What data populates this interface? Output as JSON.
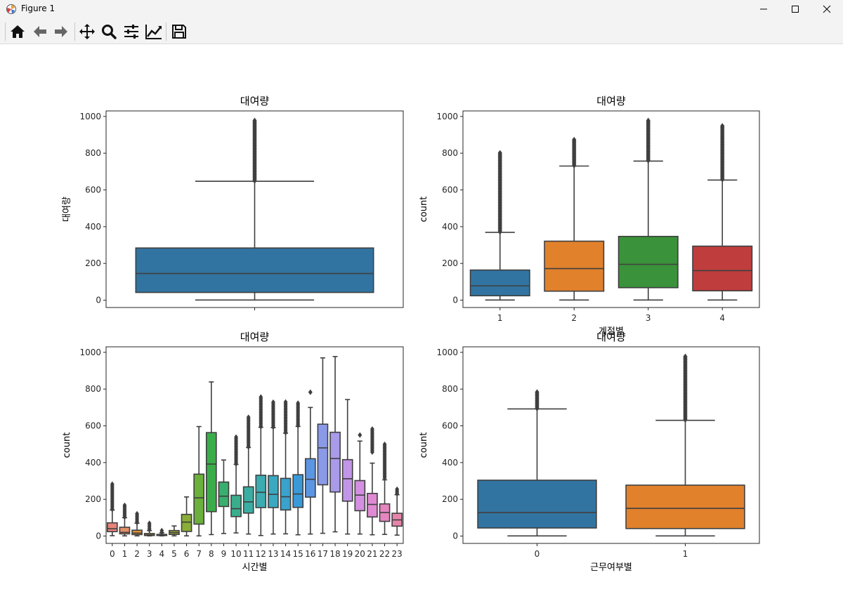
{
  "window": {
    "title": "Figure 1"
  },
  "toolbar": {
    "items": [
      {
        "name": "home-icon"
      },
      {
        "name": "back-icon"
      },
      {
        "name": "forward-icon"
      },
      {
        "name": "pan-icon"
      },
      {
        "name": "zoom-icon"
      },
      {
        "name": "subplots-icon"
      },
      {
        "name": "axes-edit-icon"
      },
      {
        "name": "save-icon"
      }
    ]
  },
  "chart_data": [
    {
      "type": "box",
      "title": "대여량",
      "xlabel": "",
      "ylabel": "대여량",
      "ylim": [
        -40,
        1030
      ],
      "yticks": [
        0,
        200,
        400,
        600,
        800,
        1000
      ],
      "categories": [
        ""
      ],
      "boxes": [
        {
          "q1": 42,
          "median": 145,
          "q3": 284,
          "whisker_low": 1,
          "whisker_high": 647,
          "outlier_min": 650,
          "outlier_max": 977,
          "color": "#3274a1"
        }
      ]
    },
    {
      "type": "box",
      "title": "대여량",
      "xlabel": "계절별",
      "ylabel": "count",
      "ylim": [
        -40,
        1030
      ],
      "yticks": [
        0,
        200,
        400,
        600,
        800,
        1000
      ],
      "categories": [
        "1",
        "2",
        "3",
        "4"
      ],
      "boxes": [
        {
          "q1": 24,
          "median": 78,
          "q3": 164,
          "whisker_low": 1,
          "whisker_high": 369,
          "outlier_min": 372,
          "outlier_max": 801,
          "color": "#3274a1"
        },
        {
          "q1": 49,
          "median": 172,
          "q3": 321,
          "whisker_low": 1,
          "whisker_high": 730,
          "outlier_min": 733,
          "outlier_max": 873,
          "color": "#e1812c"
        },
        {
          "q1": 68,
          "median": 195,
          "q3": 347,
          "whisker_low": 1,
          "whisker_high": 757,
          "outlier_min": 760,
          "outlier_max": 977,
          "color": "#3a923a"
        },
        {
          "q1": 51,
          "median": 161,
          "q3": 294,
          "whisker_low": 1,
          "whisker_high": 654,
          "outlier_min": 657,
          "outlier_max": 948,
          "color": "#c03d3e"
        }
      ]
    },
    {
      "type": "box",
      "title": "대여량",
      "xlabel": "시간별",
      "ylabel": "count",
      "ylim": [
        -40,
        1030
      ],
      "yticks": [
        0,
        200,
        400,
        600,
        800,
        1000
      ],
      "categories": [
        "0",
        "1",
        "2",
        "3",
        "4",
        "5",
        "6",
        "7",
        "8",
        "9",
        "10",
        "11",
        "12",
        "13",
        "14",
        "15",
        "16",
        "17",
        "18",
        "19",
        "20",
        "21",
        "22",
        "23"
      ],
      "boxes": [
        {
          "q1": 24,
          "median": 40,
          "q3": 72,
          "whisker_low": 2,
          "whisker_high": 142,
          "outlier_min": 145,
          "outlier_max": 283,
          "color": "#e7837a"
        },
        {
          "q1": 12,
          "median": 20,
          "q3": 48,
          "whisker_low": 1,
          "whisker_high": 100,
          "outlier_min": 103,
          "outlier_max": 168,
          "color": "#e38f6a"
        },
        {
          "q1": 8,
          "median": 16,
          "q3": 32,
          "whisker_low": 1,
          "whisker_high": 70,
          "outlier_min": 73,
          "outlier_max": 122,
          "color": "#d9913a"
        },
        {
          "q1": 3,
          "median": 6,
          "q3": 14,
          "whisker_low": 1,
          "whisker_high": 30,
          "outlier_min": 33,
          "outlier_max": 70,
          "color": "#c1983a"
        },
        {
          "q1": 3,
          "median": 6,
          "q3": 9,
          "whisker_low": 1,
          "whisker_high": 17,
          "outlier_min": 20,
          "outlier_max": 30,
          "color": "#b0a03a"
        },
        {
          "q1": 9,
          "median": 19,
          "q3": 30,
          "whisker_low": 1,
          "whisker_high": 55,
          "outlier_min": null,
          "outlier_max": null,
          "color": "#a0a83a"
        },
        {
          "q1": 25,
          "median": 76,
          "q3": 118,
          "whisker_low": 1,
          "whisker_high": 213,
          "outlier_min": null,
          "outlier_max": null,
          "color": "#8aad3a"
        },
        {
          "q1": 65,
          "median": 208,
          "q3": 337,
          "whisker_low": 1,
          "whisker_high": 596,
          "outlier_min": null,
          "outlier_max": null,
          "color": "#6bb03a"
        },
        {
          "q1": 133,
          "median": 392,
          "q3": 563,
          "whisker_low": 8,
          "whisker_high": 839,
          "outlier_min": null,
          "outlier_max": null,
          "color": "#3aad4a"
        },
        {
          "q1": 161,
          "median": 217,
          "q3": 294,
          "whisker_low": 14,
          "whisker_high": 414,
          "outlier_min": null,
          "outlier_max": null,
          "color": "#3aae6e"
        },
        {
          "q1": 106,
          "median": 149,
          "q3": 222,
          "whisker_low": 17,
          "whisker_high": 390,
          "outlier_min": 393,
          "outlier_max": 539,
          "color": "#3aae8c"
        },
        {
          "q1": 125,
          "median": 186,
          "q3": 268,
          "whisker_low": 11,
          "whisker_high": 482,
          "outlier_min": 485,
          "outlier_max": 647,
          "color": "#3aaea2"
        },
        {
          "q1": 155,
          "median": 238,
          "q3": 331,
          "whisker_low": 3,
          "whisker_high": 592,
          "outlier_min": 595,
          "outlier_max": 757,
          "color": "#3aacb2"
        },
        {
          "q1": 155,
          "median": 227,
          "q3": 329,
          "whisker_low": 11,
          "whisker_high": 590,
          "outlier_min": 593,
          "outlier_max": 729,
          "color": "#3aa8c0"
        },
        {
          "q1": 142,
          "median": 214,
          "q3": 314,
          "whisker_low": 12,
          "whisker_high": 560,
          "outlier_min": 563,
          "outlier_max": 730,
          "color": "#3aa2cc"
        },
        {
          "q1": 156,
          "median": 229,
          "q3": 334,
          "whisker_low": 7,
          "whisker_high": 597,
          "outlier_min": 600,
          "outlier_max": 724,
          "color": "#3a9ad8"
        },
        {
          "q1": 212,
          "median": 309,
          "q3": 421,
          "whisker_low": 11,
          "whisker_high": 700,
          "outlier_min": 783,
          "outlier_max": 783,
          "color": "#5a96e4"
        },
        {
          "q1": 279,
          "median": 480,
          "q3": 609,
          "whisker_low": 15,
          "whisker_high": 970,
          "outlier_min": null,
          "outlier_max": null,
          "color": "#8a9ae8"
        },
        {
          "q1": 240,
          "median": 422,
          "q3": 565,
          "whisker_low": 23,
          "whisker_high": 977,
          "outlier_min": null,
          "outlier_max": null,
          "color": "#a99aea"
        },
        {
          "q1": 190,
          "median": 312,
          "q3": 416,
          "whisker_low": 11,
          "whisker_high": 743,
          "outlier_min": null,
          "outlier_max": null,
          "color": "#c295e8"
        },
        {
          "q1": 138,
          "median": 223,
          "q3": 302,
          "whisker_low": 11,
          "whisker_high": 517,
          "outlier_min": 550,
          "outlier_max": 550,
          "color": "#d48fe0"
        },
        {
          "q1": 104,
          "median": 172,
          "q3": 232,
          "whisker_low": 7,
          "whisker_high": 397,
          "outlier_min": 457,
          "outlier_max": 583,
          "color": "#e08ad4"
        },
        {
          "q1": 80,
          "median": 128,
          "q3": 175,
          "whisker_low": 9,
          "whisker_high": 306,
          "outlier_min": 316,
          "outlier_max": 500,
          "color": "#e586c0"
        },
        {
          "q1": 54,
          "median": 88,
          "q3": 124,
          "whisker_low": 5,
          "whisker_high": 225,
          "outlier_min": 230,
          "outlier_max": 255,
          "color": "#e784ac"
        }
      ]
    },
    {
      "type": "box",
      "title": "대여량",
      "xlabel": "근무여부별",
      "ylabel": "count",
      "ylim": [
        -40,
        1030
      ],
      "yticks": [
        0,
        200,
        400,
        600,
        800,
        1000
      ],
      "categories": [
        "0",
        "1"
      ],
      "boxes": [
        {
          "q1": 44,
          "median": 128,
          "q3": 304,
          "whisker_low": 1,
          "whisker_high": 692,
          "outlier_min": 695,
          "outlier_max": 783,
          "color": "#3274a1"
        },
        {
          "q1": 41,
          "median": 151,
          "q3": 277,
          "whisker_low": 1,
          "whisker_high": 630,
          "outlier_min": 633,
          "outlier_max": 977,
          "color": "#e1812c"
        }
      ]
    }
  ]
}
